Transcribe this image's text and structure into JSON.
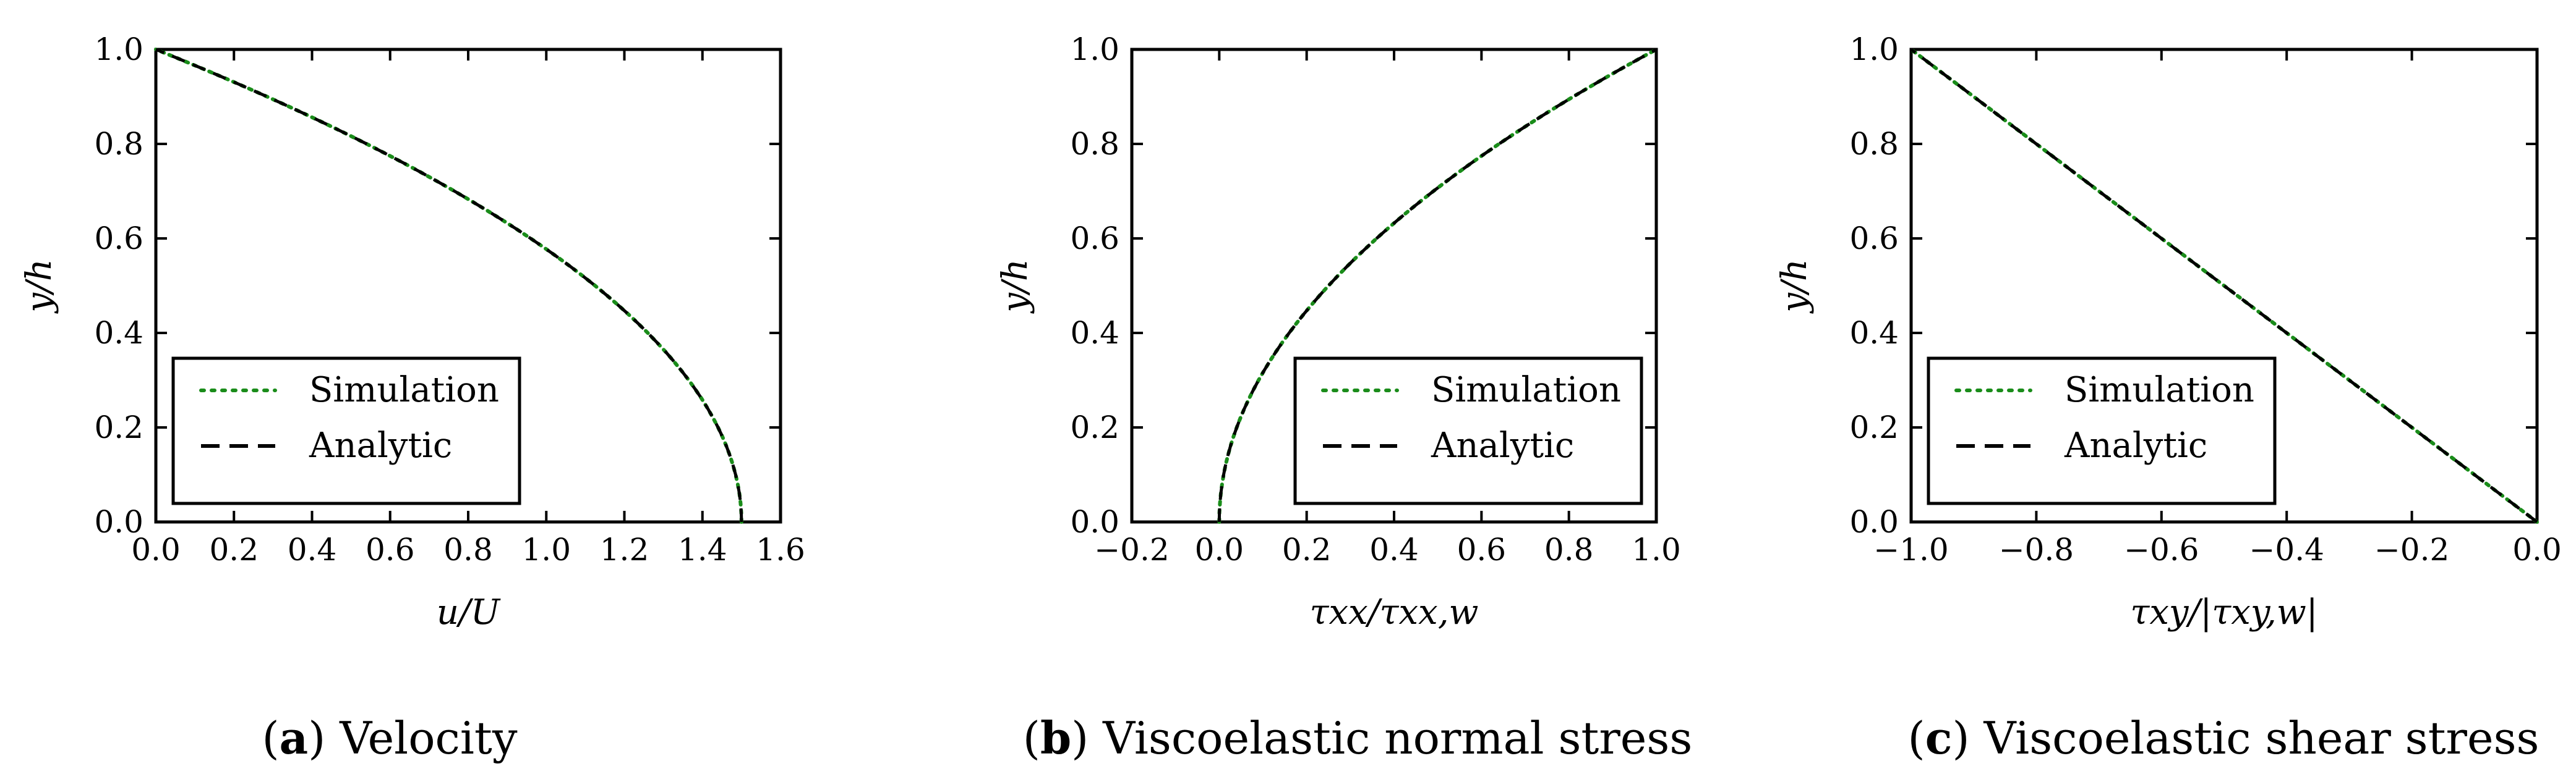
{
  "chart_data": [
    {
      "type": "line",
      "panel": "a",
      "caption_letter": "a",
      "caption_text": "Velocity",
      "xlabel": "u/U",
      "ylabel": "y/h",
      "xlim": [
        0.0,
        1.6
      ],
      "ylim": [
        0.0,
        1.0
      ],
      "xticks": [
        0.0,
        0.2,
        0.4,
        0.6,
        0.8,
        1.0,
        1.2,
        1.4,
        1.6
      ],
      "xtick_labels": [
        "0.0",
        "0.2",
        "0.4",
        "0.6",
        "0.8",
        "1.0",
        "1.2",
        "1.4",
        "1.6"
      ],
      "yticks": [
        0.0,
        0.2,
        0.4,
        0.6,
        0.8,
        1.0
      ],
      "ytick_labels": [
        "0.0",
        "0.2",
        "0.4",
        "0.6",
        "0.8",
        "1.0"
      ],
      "legend_position": "lower-left",
      "series": [
        {
          "name": "Simulation",
          "style": "dotted",
          "color": "#1a8c1a",
          "x": [
            1.5,
            1.4994,
            1.4976,
            1.4946,
            1.4904,
            1.485,
            1.4784,
            1.4706,
            1.4616,
            1.4514,
            1.44,
            1.4274,
            1.4136,
            1.3986,
            1.3824,
            1.365,
            1.3464,
            1.3266,
            1.3056,
            1.2834,
            1.26,
            1.2354,
            1.2096,
            1.1826,
            1.1544,
            1.125,
            1.0944,
            1.0626,
            1.0296,
            0.9954,
            0.96,
            0.9234,
            0.8856,
            0.8466,
            0.8064,
            0.765,
            0.7224,
            0.6786,
            0.6336,
            0.5874,
            0.54,
            0.4914,
            0.4416,
            0.3906,
            0.3384,
            0.285,
            0.2304,
            0.1746,
            0.1176,
            0.0594,
            0.0
          ],
          "y": [
            0.0,
            0.02,
            0.04,
            0.06,
            0.08,
            0.1,
            0.12,
            0.14,
            0.16,
            0.18,
            0.2,
            0.22,
            0.24,
            0.26,
            0.28,
            0.3,
            0.32,
            0.34,
            0.36,
            0.38,
            0.4,
            0.42,
            0.44,
            0.46,
            0.48,
            0.5,
            0.52,
            0.54,
            0.56,
            0.58,
            0.6,
            0.62,
            0.64,
            0.66,
            0.68,
            0.7,
            0.72,
            0.74,
            0.76,
            0.78,
            0.8,
            0.82,
            0.84,
            0.86,
            0.88,
            0.9,
            0.92,
            0.94,
            0.96,
            0.98,
            1.0
          ]
        },
        {
          "name": "Analytic",
          "style": "dashed",
          "color": "#000000",
          "x": [
            1.5,
            1.4994,
            1.4976,
            1.4946,
            1.4904,
            1.485,
            1.4784,
            1.4706,
            1.4616,
            1.4514,
            1.44,
            1.4274,
            1.4136,
            1.3986,
            1.3824,
            1.365,
            1.3464,
            1.3266,
            1.3056,
            1.2834,
            1.26,
            1.2354,
            1.2096,
            1.1826,
            1.1544,
            1.125,
            1.0944,
            1.0626,
            1.0296,
            0.9954,
            0.96,
            0.9234,
            0.8856,
            0.8466,
            0.8064,
            0.765,
            0.7224,
            0.6786,
            0.6336,
            0.5874,
            0.54,
            0.4914,
            0.4416,
            0.3906,
            0.3384,
            0.285,
            0.2304,
            0.1746,
            0.1176,
            0.0594,
            0.0
          ],
          "y": [
            0.0,
            0.02,
            0.04,
            0.06,
            0.08,
            0.1,
            0.12,
            0.14,
            0.16,
            0.18,
            0.2,
            0.22,
            0.24,
            0.26,
            0.28,
            0.3,
            0.32,
            0.34,
            0.36,
            0.38,
            0.4,
            0.42,
            0.44,
            0.46,
            0.48,
            0.5,
            0.52,
            0.54,
            0.56,
            0.58,
            0.6,
            0.62,
            0.64,
            0.66,
            0.68,
            0.7,
            0.72,
            0.74,
            0.76,
            0.78,
            0.8,
            0.82,
            0.84,
            0.86,
            0.88,
            0.9,
            0.92,
            0.94,
            0.96,
            0.98,
            1.0
          ]
        }
      ]
    },
    {
      "type": "line",
      "panel": "b",
      "caption_letter": "b",
      "caption_text": "Viscoelastic normal stress",
      "xlabel": "τxx/τxx,w",
      "ylabel": "y/h",
      "xlim": [
        -0.2,
        1.0
      ],
      "ylim": [
        0.0,
        1.0
      ],
      "xticks": [
        -0.2,
        0.0,
        0.2,
        0.4,
        0.6,
        0.8,
        1.0
      ],
      "xtick_labels": [
        "−0.2",
        "0.0",
        "0.2",
        "0.4",
        "0.6",
        "0.8",
        "1.0"
      ],
      "yticks": [
        0.0,
        0.2,
        0.4,
        0.6,
        0.8,
        1.0
      ],
      "ytick_labels": [
        "0.0",
        "0.2",
        "0.4",
        "0.6",
        "0.8",
        "1.0"
      ],
      "legend_position": "lower-right",
      "series": [
        {
          "name": "Simulation",
          "style": "dotted",
          "color": "#1a8c1a",
          "x": [
            0.0,
            0.0004,
            0.0016,
            0.0036,
            0.0064,
            0.01,
            0.0144,
            0.0196,
            0.0256,
            0.0324,
            0.04,
            0.0484,
            0.0576,
            0.0676,
            0.0784,
            0.09,
            0.1024,
            0.1156,
            0.1296,
            0.1444,
            0.16,
            0.1764,
            0.1936,
            0.2116,
            0.2304,
            0.25,
            0.2704,
            0.2916,
            0.3136,
            0.3364,
            0.36,
            0.3844,
            0.4096,
            0.4356,
            0.4624,
            0.49,
            0.5184,
            0.5476,
            0.5776,
            0.6084,
            0.64,
            0.6724,
            0.7056,
            0.7396,
            0.7744,
            0.81,
            0.8464,
            0.8836,
            0.9216,
            0.9604,
            1.0
          ],
          "y": [
            0.0,
            0.02,
            0.04,
            0.06,
            0.08,
            0.1,
            0.12,
            0.14,
            0.16,
            0.18,
            0.2,
            0.22,
            0.24,
            0.26,
            0.28,
            0.3,
            0.32,
            0.34,
            0.36,
            0.38,
            0.4,
            0.42,
            0.44,
            0.46,
            0.48,
            0.5,
            0.52,
            0.54,
            0.56,
            0.58,
            0.6,
            0.62,
            0.64,
            0.66,
            0.68,
            0.7,
            0.72,
            0.74,
            0.76,
            0.78,
            0.8,
            0.82,
            0.84,
            0.86,
            0.88,
            0.9,
            0.92,
            0.94,
            0.96,
            0.98,
            1.0
          ]
        },
        {
          "name": "Analytic",
          "style": "dashed",
          "color": "#000000",
          "x": [
            0.0,
            0.0004,
            0.0016,
            0.0036,
            0.0064,
            0.01,
            0.0144,
            0.0196,
            0.0256,
            0.0324,
            0.04,
            0.0484,
            0.0576,
            0.0676,
            0.0784,
            0.09,
            0.1024,
            0.1156,
            0.1296,
            0.1444,
            0.16,
            0.1764,
            0.1936,
            0.2116,
            0.2304,
            0.25,
            0.2704,
            0.2916,
            0.3136,
            0.3364,
            0.36,
            0.3844,
            0.4096,
            0.4356,
            0.4624,
            0.49,
            0.5184,
            0.5476,
            0.5776,
            0.6084,
            0.64,
            0.6724,
            0.7056,
            0.7396,
            0.7744,
            0.81,
            0.8464,
            0.8836,
            0.9216,
            0.9604,
            1.0
          ],
          "y": [
            0.0,
            0.02,
            0.04,
            0.06,
            0.08,
            0.1,
            0.12,
            0.14,
            0.16,
            0.18,
            0.2,
            0.22,
            0.24,
            0.26,
            0.28,
            0.3,
            0.32,
            0.34,
            0.36,
            0.38,
            0.4,
            0.42,
            0.44,
            0.46,
            0.48,
            0.5,
            0.52,
            0.54,
            0.56,
            0.58,
            0.6,
            0.62,
            0.64,
            0.66,
            0.68,
            0.7,
            0.72,
            0.74,
            0.76,
            0.78,
            0.8,
            0.82,
            0.84,
            0.86,
            0.88,
            0.9,
            0.92,
            0.94,
            0.96,
            0.98,
            1.0
          ]
        }
      ]
    },
    {
      "type": "line",
      "panel": "c",
      "caption_letter": "c",
      "caption_text": "Viscoelastic shear stress",
      "xlabel": "τxy/|τxy,w|",
      "ylabel": "y/h",
      "xlim": [
        -1.0,
        0.0
      ],
      "ylim": [
        0.0,
        1.0
      ],
      "xticks": [
        -1.0,
        -0.8,
        -0.6,
        -0.4,
        -0.2,
        0.0
      ],
      "xtick_labels": [
        "−1.0",
        "−0.8",
        "−0.6",
        "−0.4",
        "−0.2",
        "0.0"
      ],
      "yticks": [
        0.0,
        0.2,
        0.4,
        0.6,
        0.8,
        1.0
      ],
      "ytick_labels": [
        "0.0",
        "0.2",
        "0.4",
        "0.6",
        "0.8",
        "1.0"
      ],
      "legend_position": "lower-left",
      "series": [
        {
          "name": "Simulation",
          "style": "dotted",
          "color": "#1a8c1a",
          "x": [
            0.0,
            -0.1,
            -0.2,
            -0.3,
            -0.4,
            -0.5,
            -0.6,
            -0.7,
            -0.8,
            -0.9,
            -1.0
          ],
          "y": [
            0.0,
            0.1,
            0.2,
            0.3,
            0.4,
            0.5,
            0.6,
            0.7,
            0.8,
            0.9,
            1.0
          ]
        },
        {
          "name": "Analytic",
          "style": "dashed",
          "color": "#000000",
          "x": [
            0.0,
            -0.1,
            -0.2,
            -0.3,
            -0.4,
            -0.5,
            -0.6,
            -0.7,
            -0.8,
            -0.9,
            -1.0
          ],
          "y": [
            0.0,
            0.1,
            0.2,
            0.3,
            0.4,
            0.5,
            0.6,
            0.7,
            0.8,
            0.9,
            1.0
          ]
        }
      ]
    }
  ]
}
